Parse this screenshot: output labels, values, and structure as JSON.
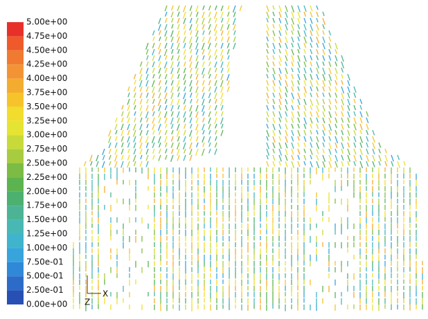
{
  "legend": {
    "labels": [
      "5.00e+00",
      "4.75e+00",
      "4.50e+00",
      "4.25e+00",
      "4.00e+00",
      "3.75e+00",
      "3.50e+00",
      "3.25e+00",
      "3.00e+00",
      "2.75e+00",
      "2.50e+00",
      "2.25e+00",
      "2.00e+00",
      "1.75e+00",
      "1.50e+00",
      "1.25e+00",
      "1.00e+00",
      "7.50e-01",
      "5.00e-01",
      "2.50e-01",
      "0.00e+00"
    ],
    "colors": [
      "#e8302a",
      "#ee5a2c",
      "#f07a30",
      "#f29436",
      "#f4ac30",
      "#f6c42a",
      "#f2dc2c",
      "#e6e432",
      "#c8da3a",
      "#a8cc40",
      "#7cbc44",
      "#5cb450",
      "#4cb070",
      "#4cb494",
      "#48b8b4",
      "#40b4cc",
      "#38a4dc",
      "#3088d8",
      "#2c6cc8",
      "#2850b4"
    ]
  },
  "triad": {
    "x": "X",
    "z": "Z"
  }
}
